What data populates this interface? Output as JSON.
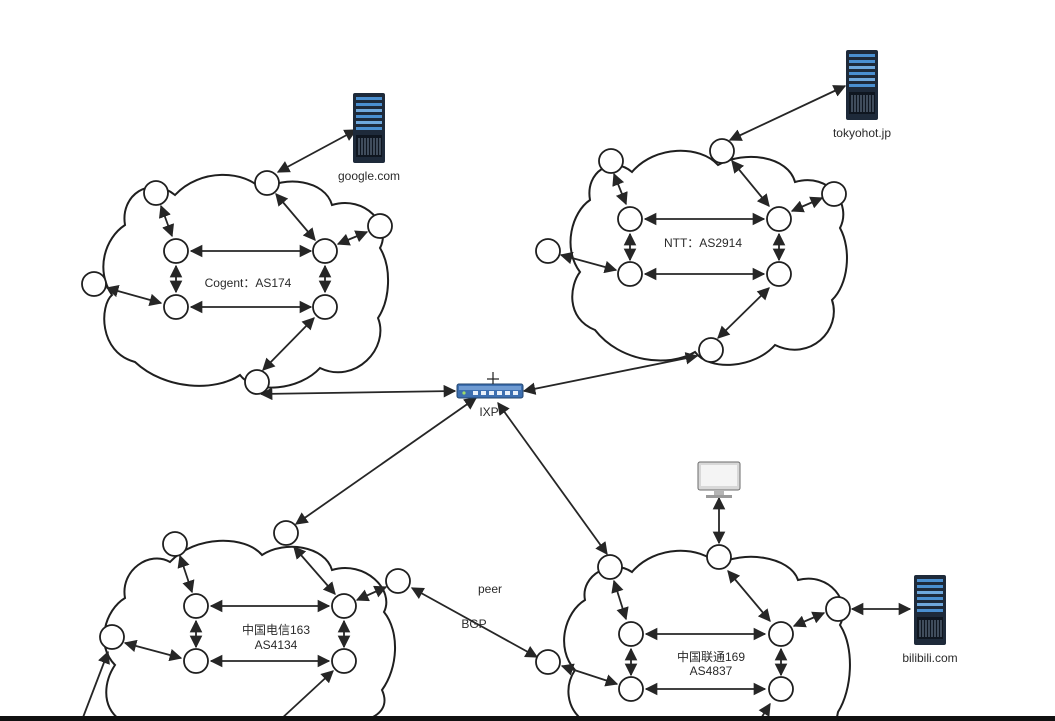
{
  "clouds": [
    {
      "id": "cogent",
      "name": "Cogent：AS174"
    },
    {
      "id": "ntt",
      "name": "NTT：AS2914"
    },
    {
      "id": "telecom",
      "name": "中国电信163",
      "asn": "AS4134"
    },
    {
      "id": "unicom",
      "name": "中国联通169",
      "asn": "AS4837"
    }
  ],
  "hosts": {
    "google": "google.com",
    "tokyohot": "tokyohot.jp",
    "bilibili": "bilibili.com"
  },
  "ixp": {
    "label": "IXP"
  },
  "link_labels": {
    "peer": "peer",
    "bgp": "BGP"
  },
  "icons": {
    "server": "server-icon",
    "switch": "network-switch-icon",
    "monitor": "desktop-monitor-icon"
  },
  "colors": {
    "server_body": "#1e2a3a",
    "server_stripe": "#4a8fd0",
    "switch_body": "#3d6fb0",
    "line": "#262626"
  }
}
